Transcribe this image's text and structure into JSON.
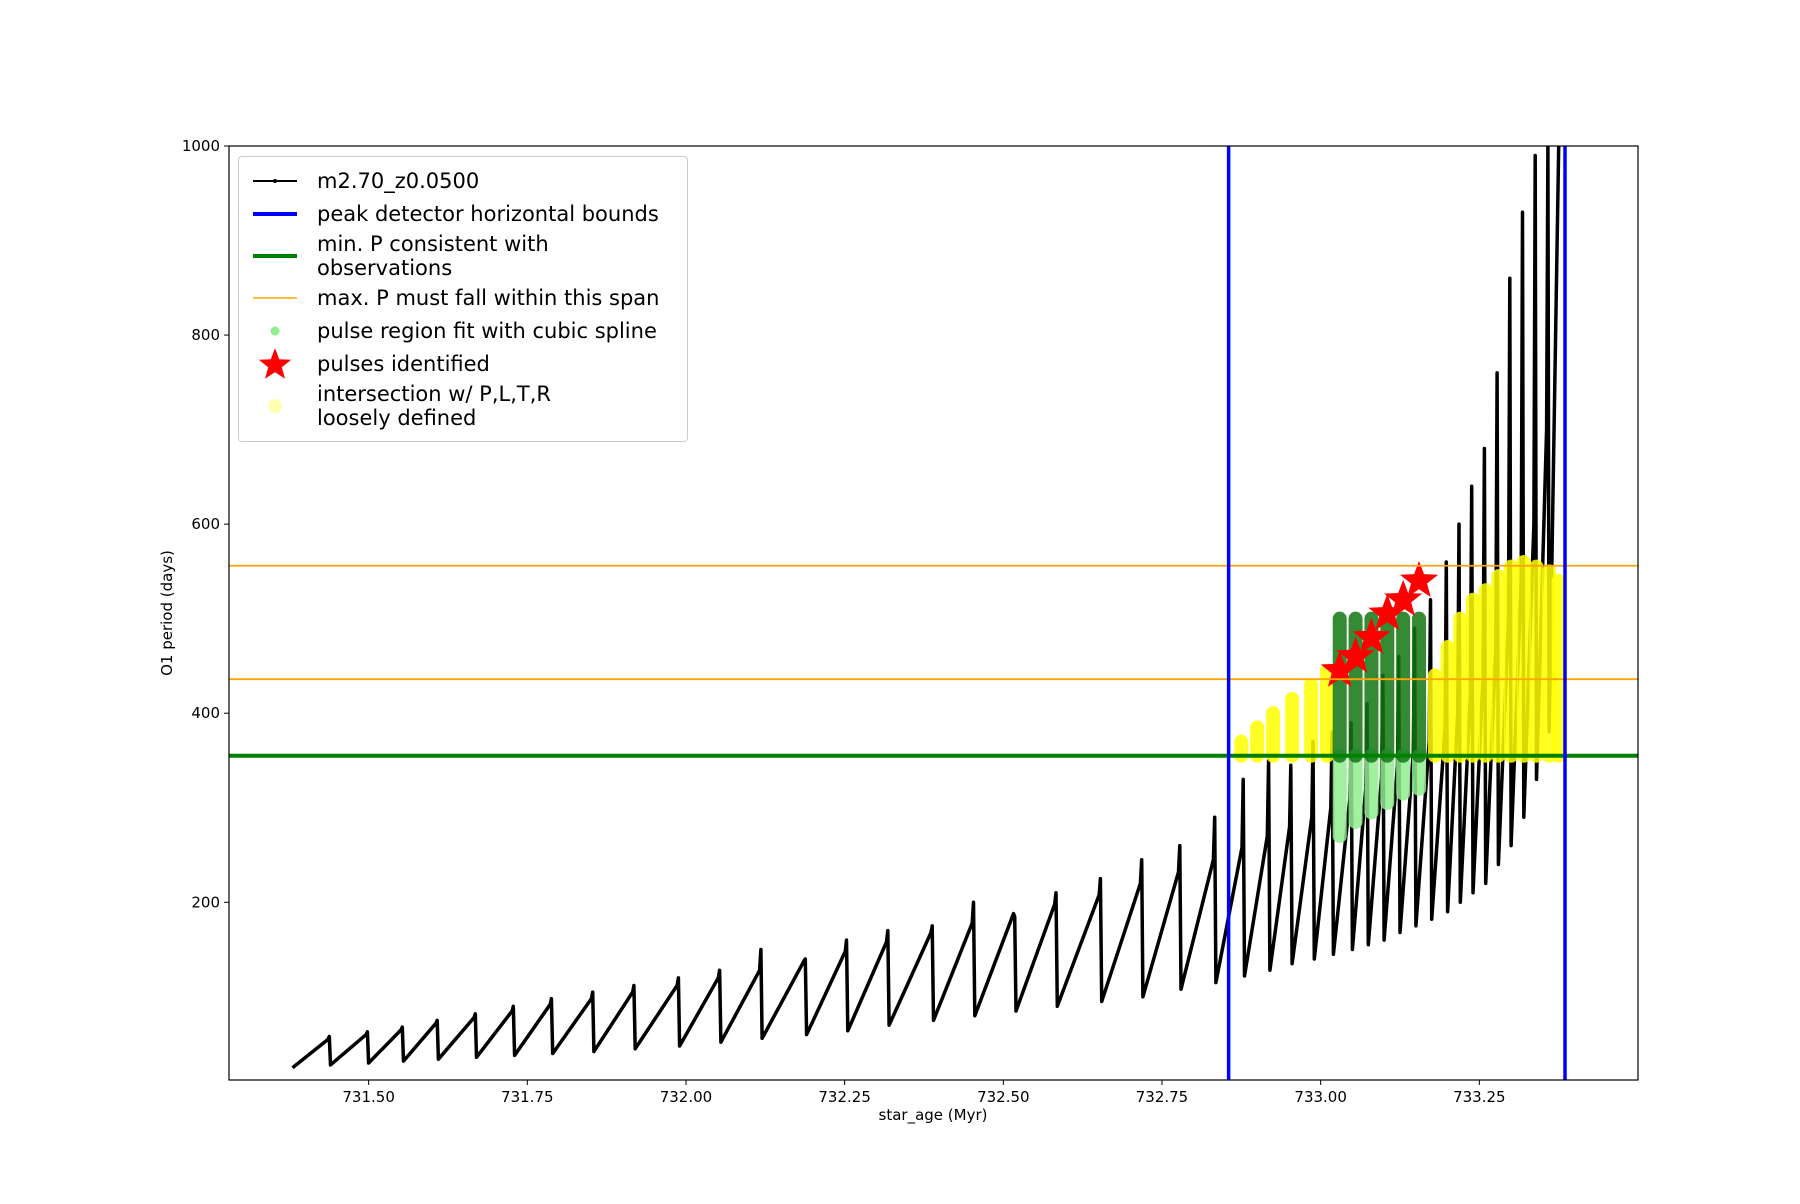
{
  "chart_data": {
    "type": "line",
    "xlabel": "star_age (Myr)",
    "ylabel": "O1 period (days)",
    "xlim": [
      731.28,
      733.5
    ],
    "ylim": [
      12,
      1000
    ],
    "xticks": [
      {
        "value": 731.5,
        "label": "731.50"
      },
      {
        "value": 731.75,
        "label": "731.75"
      },
      {
        "value": 732.0,
        "label": "732.00"
      },
      {
        "value": 732.25,
        "label": "732.25"
      },
      {
        "value": 732.5,
        "label": "732.50"
      },
      {
        "value": 732.75,
        "label": "732.75"
      },
      {
        "value": 733.0,
        "label": "733.00"
      },
      {
        "value": 733.25,
        "label": "733.25"
      }
    ],
    "yticks": [
      200,
      400,
      600,
      800,
      1000
    ],
    "legend": "upper left",
    "series": [
      {
        "name": "m2.70_z0.0500",
        "kind": "line",
        "color": "#000000",
        "x": [
          731.38,
          731.436,
          731.438,
          731.44,
          731.496,
          731.498,
          731.5,
          731.551,
          731.553,
          731.555,
          731.606,
          731.608,
          731.61,
          731.666,
          731.668,
          731.67,
          731.726,
          731.728,
          731.73,
          731.786,
          731.788,
          731.79,
          731.851,
          731.853,
          731.855,
          731.916,
          731.918,
          731.92,
          731.986,
          731.988,
          731.99,
          732.051,
          732.053,
          732.055,
          732.116,
          732.118,
          732.12,
          732.186,
          732.188,
          732.19,
          732.251,
          732.253,
          732.255,
          732.316,
          732.318,
          732.32,
          732.386,
          732.388,
          732.39,
          732.451,
          732.453,
          732.455,
          732.516,
          732.518,
          732.52,
          732.581,
          732.583,
          732.585,
          732.651,
          732.653,
          732.655,
          732.716,
          732.718,
          732.72,
          732.776,
          732.778,
          732.78,
          732.831,
          732.833,
          732.835,
          732.876,
          732.878,
          732.88,
          732.916,
          732.918,
          732.92,
          732.951,
          732.953,
          732.955,
          732.986,
          732.988,
          732.99,
          733.016,
          733.018,
          733.02,
          733.046,
          733.048,
          733.05,
          733.071,
          733.073,
          733.075,
          733.096,
          733.098,
          733.1,
          733.121,
          733.123,
          733.125,
          733.146,
          733.148,
          733.15,
          733.171,
          733.173,
          733.175,
          733.196,
          733.198,
          733.2,
          733.216,
          733.218,
          733.22,
          733.236,
          733.238,
          733.24,
          733.256,
          733.258,
          733.26,
          733.276,
          733.278,
          733.28,
          733.296,
          733.298,
          733.3,
          733.316,
          733.318,
          733.32,
          733.336,
          733.338,
          733.34,
          733.356,
          733.358,
          733.36,
          733.375
        ],
        "values": [
          25,
          55,
          58,
          28,
          60,
          63,
          30,
          65,
          68,
          32,
          72,
          75,
          34,
          78,
          82,
          36,
          85,
          90,
          38,
          92,
          98,
          40,
          98,
          105,
          42,
          105,
          112,
          45,
          112,
          120,
          48,
          120,
          128,
          52,
          128,
          150,
          56,
          138,
          140,
          60,
          148,
          160,
          64,
          158,
          170,
          70,
          168,
          175,
          75,
          178,
          200,
          80,
          188,
          185,
          85,
          198,
          210,
          90,
          208,
          225,
          95,
          220,
          245,
          100,
          232,
          260,
          108,
          245,
          290,
          115,
          258,
          330,
          122,
          270,
          350,
          128,
          280,
          345,
          135,
          290,
          370,
          140,
          300,
          380,
          145,
          310,
          390,
          150,
          320,
          410,
          155,
          332,
          440,
          160,
          345,
          460,
          168,
          358,
          490,
          175,
          370,
          520,
          182,
          385,
          560,
          190,
          400,
          600,
          200,
          420,
          640,
          210,
          440,
          680,
          220,
          470,
          760,
          240,
          500,
          860,
          260,
          540,
          930,
          290,
          600,
          990,
          330,
          700,
          1000,
          380,
          1000
        ]
      },
      {
        "name": "peak detector horizontal bounds",
        "kind": "vline",
        "color": "#0000ff",
        "x": [
          732.855,
          733.385
        ]
      },
      {
        "name": "min. P consistent with observations",
        "kind": "hline",
        "color": "#008000",
        "values": [
          355
        ]
      },
      {
        "name": "max. P must fall within this span",
        "kind": "hline",
        "color": "#ffa500",
        "values": [
          556,
          436
        ]
      },
      {
        "name": "pulse region fit with cubic spline",
        "kind": "range",
        "color": "#90ee90",
        "x": [
          733.03,
          733.055,
          733.08,
          733.105,
          733.13,
          733.155
        ],
        "low": [
          270,
          285,
          295,
          305,
          315,
          320
        ],
        "high": [
          355,
          355,
          355,
          355,
          355,
          355
        ]
      },
      {
        "name": "pulses identified",
        "kind": "star",
        "color": "#ff0000",
        "x": [
          733.03,
          733.055,
          733.08,
          733.105,
          733.13,
          733.155
        ],
        "values": [
          445,
          460,
          480,
          505,
          520,
          540
        ]
      },
      {
        "name": "intersection w/ P,L,T,R\nloosely defined",
        "kind": "range",
        "color": "#ffff00",
        "x": [
          732.875,
          732.9,
          732.925,
          732.955,
          732.985,
          733.01,
          733.18,
          733.2,
          733.22,
          733.24,
          733.26,
          733.28,
          733.3,
          733.32,
          733.34,
          733.36,
          733.375
        ],
        "low": [
          355,
          355,
          355,
          355,
          355,
          355,
          355,
          355,
          355,
          355,
          355,
          355,
          355,
          355,
          355,
          355,
          355
        ],
        "high": [
          370,
          385,
          400,
          415,
          430,
          445,
          440,
          470,
          500,
          520,
          530,
          545,
          555,
          560,
          555,
          550,
          540
        ]
      },
      {
        "kind": "range",
        "color": "#117711",
        "x": [
          733.03,
          733.055,
          733.08,
          733.105,
          733.13,
          733.155
        ],
        "low": [
          355,
          355,
          355,
          355,
          355,
          355
        ],
        "high": [
          500,
          500,
          500,
          500,
          500,
          500
        ]
      }
    ]
  }
}
